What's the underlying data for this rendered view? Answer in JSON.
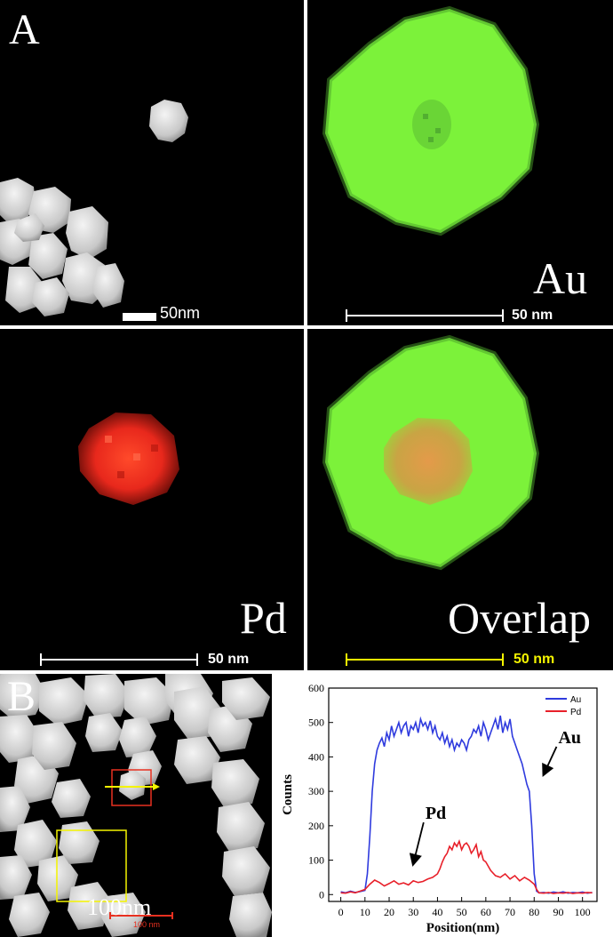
{
  "panel_a": {
    "letter": "A",
    "tl_scale": "50nm",
    "au": {
      "label": "Au",
      "scale": "50 nm"
    },
    "pd": {
      "label": "Pd",
      "scale": "50 nm"
    },
    "overlap": {
      "label": "Overlap",
      "scale": "50 nm"
    }
  },
  "panel_b": {
    "letter": "B",
    "image_scale_big": "100nm",
    "image_scale_small": "100 nm"
  },
  "colors": {
    "au_green": "#7cf23a",
    "pd_red": "#e8281c",
    "overlap_core": "#d79a3c",
    "scale_yellow": "#f4f400",
    "au_line": "#2f3bde",
    "pd_line": "#e8202a"
  },
  "chart_data": {
    "type": "line",
    "xlabel": "Position(nm)",
    "ylabel": "Counts",
    "xlim": [
      -5,
      106
    ],
    "ylim": [
      -20,
      600
    ],
    "xticks": [
      0,
      10,
      20,
      30,
      40,
      50,
      60,
      70,
      80,
      90,
      100
    ],
    "yticks": [
      0,
      100,
      200,
      300,
      400,
      500,
      600
    ],
    "legend_position": "top-right",
    "annotations": [
      {
        "text": "Au",
        "x": 90,
        "y": 440,
        "arrow_to": [
          84,
          350
        ]
      },
      {
        "text": "Pd",
        "x": 35,
        "y": 220,
        "arrow_to": [
          30,
          90
        ]
      }
    ],
    "series": [
      {
        "name": "Au",
        "x": [
          0,
          2,
          4,
          6,
          8,
          10,
          11,
          12,
          13,
          14,
          15,
          16,
          17,
          18,
          19,
          20,
          21,
          22,
          23,
          24,
          25,
          26,
          27,
          28,
          29,
          30,
          31,
          32,
          33,
          34,
          35,
          36,
          37,
          38,
          39,
          40,
          41,
          42,
          43,
          44,
          45,
          46,
          47,
          48,
          49,
          50,
          51,
          52,
          53,
          54,
          55,
          56,
          57,
          58,
          59,
          60,
          61,
          62,
          63,
          64,
          65,
          66,
          67,
          68,
          69,
          70,
          71,
          72,
          73,
          74,
          75,
          76,
          77,
          78,
          79,
          80,
          81,
          82,
          84,
          86,
          88,
          90,
          92,
          94,
          96,
          98,
          100,
          102,
          104
        ],
        "values": [
          8,
          5,
          10,
          6,
          9,
          12,
          60,
          170,
          300,
          380,
          420,
          440,
          455,
          430,
          470,
          450,
          490,
          460,
          480,
          500,
          470,
          490,
          500,
          460,
          490,
          480,
          500,
          470,
          510,
          490,
          500,
          480,
          505,
          470,
          490,
          460,
          450,
          470,
          440,
          460,
          430,
          450,
          420,
          440,
          430,
          450,
          440,
          420,
          450,
          460,
          480,
          470,
          490,
          460,
          500,
          480,
          450,
          470,
          490,
          510,
          480,
          520,
          470,
          500,
          480,
          510,
          460,
          440,
          420,
          400,
          380,
          350,
          320,
          300,
          200,
          60,
          10,
          5,
          6,
          4,
          7,
          5,
          8,
          4,
          6,
          5,
          7,
          4,
          6
        ]
      },
      {
        "name": "Pd",
        "x": [
          0,
          2,
          4,
          6,
          8,
          10,
          12,
          14,
          16,
          18,
          20,
          22,
          24,
          26,
          28,
          30,
          32,
          34,
          36,
          38,
          40,
          41,
          42,
          43,
          44,
          45,
          46,
          47,
          48,
          49,
          50,
          51,
          52,
          53,
          54,
          55,
          56,
          57,
          58,
          59,
          60,
          62,
          64,
          66,
          68,
          70,
          72,
          74,
          76,
          78,
          80,
          81,
          82,
          84,
          86,
          88,
          90,
          92,
          94,
          96,
          98,
          100,
          102,
          104
        ],
        "values": [
          5,
          4,
          8,
          5,
          10,
          15,
          30,
          42,
          35,
          25,
          32,
          40,
          30,
          34,
          28,
          40,
          35,
          38,
          45,
          50,
          60,
          75,
          95,
          110,
          120,
          140,
          130,
          150,
          140,
          155,
          130,
          145,
          150,
          140,
          120,
          130,
          145,
          110,
          125,
          100,
          95,
          70,
          55,
          50,
          60,
          45,
          55,
          40,
          50,
          42,
          30,
          15,
          5,
          4,
          6,
          3,
          5,
          4,
          6,
          3,
          5,
          4,
          6,
          5
        ]
      }
    ]
  }
}
